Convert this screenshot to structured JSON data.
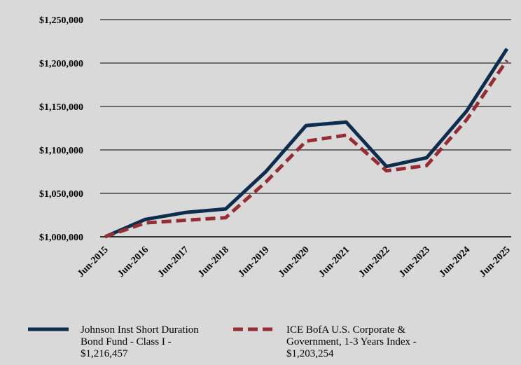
{
  "chart_data": {
    "type": "line",
    "title": "",
    "xlabel": "",
    "ylabel": "",
    "categories": [
      "Jun-2015",
      "Jun-2016",
      "Jun-2017",
      "Jun-2018",
      "Jun-2019",
      "Jun-2020",
      "Jun-2021",
      "Jun-2022",
      "Jun-2023",
      "Jun-2024",
      "Jun-2025"
    ],
    "y_ticks": [
      "$1,000,000",
      "$1,050,000",
      "$1,100,000",
      "$1,150,000",
      "$1,200,000",
      "$1,250,000"
    ],
    "ylim": [
      1000000,
      1250000
    ],
    "grid": true,
    "legend_position": "bottom",
    "series": [
      {
        "name": "Johnson Inst Short Duration Bond Fund - Class I - $1,216,457",
        "legend_lines": [
          "Johnson Inst Short Duration",
          "Bond Fund - Class I -",
          "$1,216,457"
        ],
        "color": "#0d2d4f",
        "style": "solid",
        "values": [
          1000000,
          1020000,
          1028000,
          1032000,
          1075000,
          1128000,
          1132000,
          1081000,
          1091000,
          1145000,
          1216457
        ]
      },
      {
        "name": "ICE BofA U.S. Corporate & Government, 1-3 Years Index - $1,203,254",
        "legend_lines": [
          "ICE BofA U.S. Corporate &",
          "Government, 1-3 Years Index -",
          " $1,203,254"
        ],
        "color": "#962d33",
        "style": "dashed",
        "values": [
          1000000,
          1016000,
          1019000,
          1022000,
          1063000,
          1110000,
          1117000,
          1076000,
          1082000,
          1135000,
          1203254
        ]
      }
    ]
  }
}
